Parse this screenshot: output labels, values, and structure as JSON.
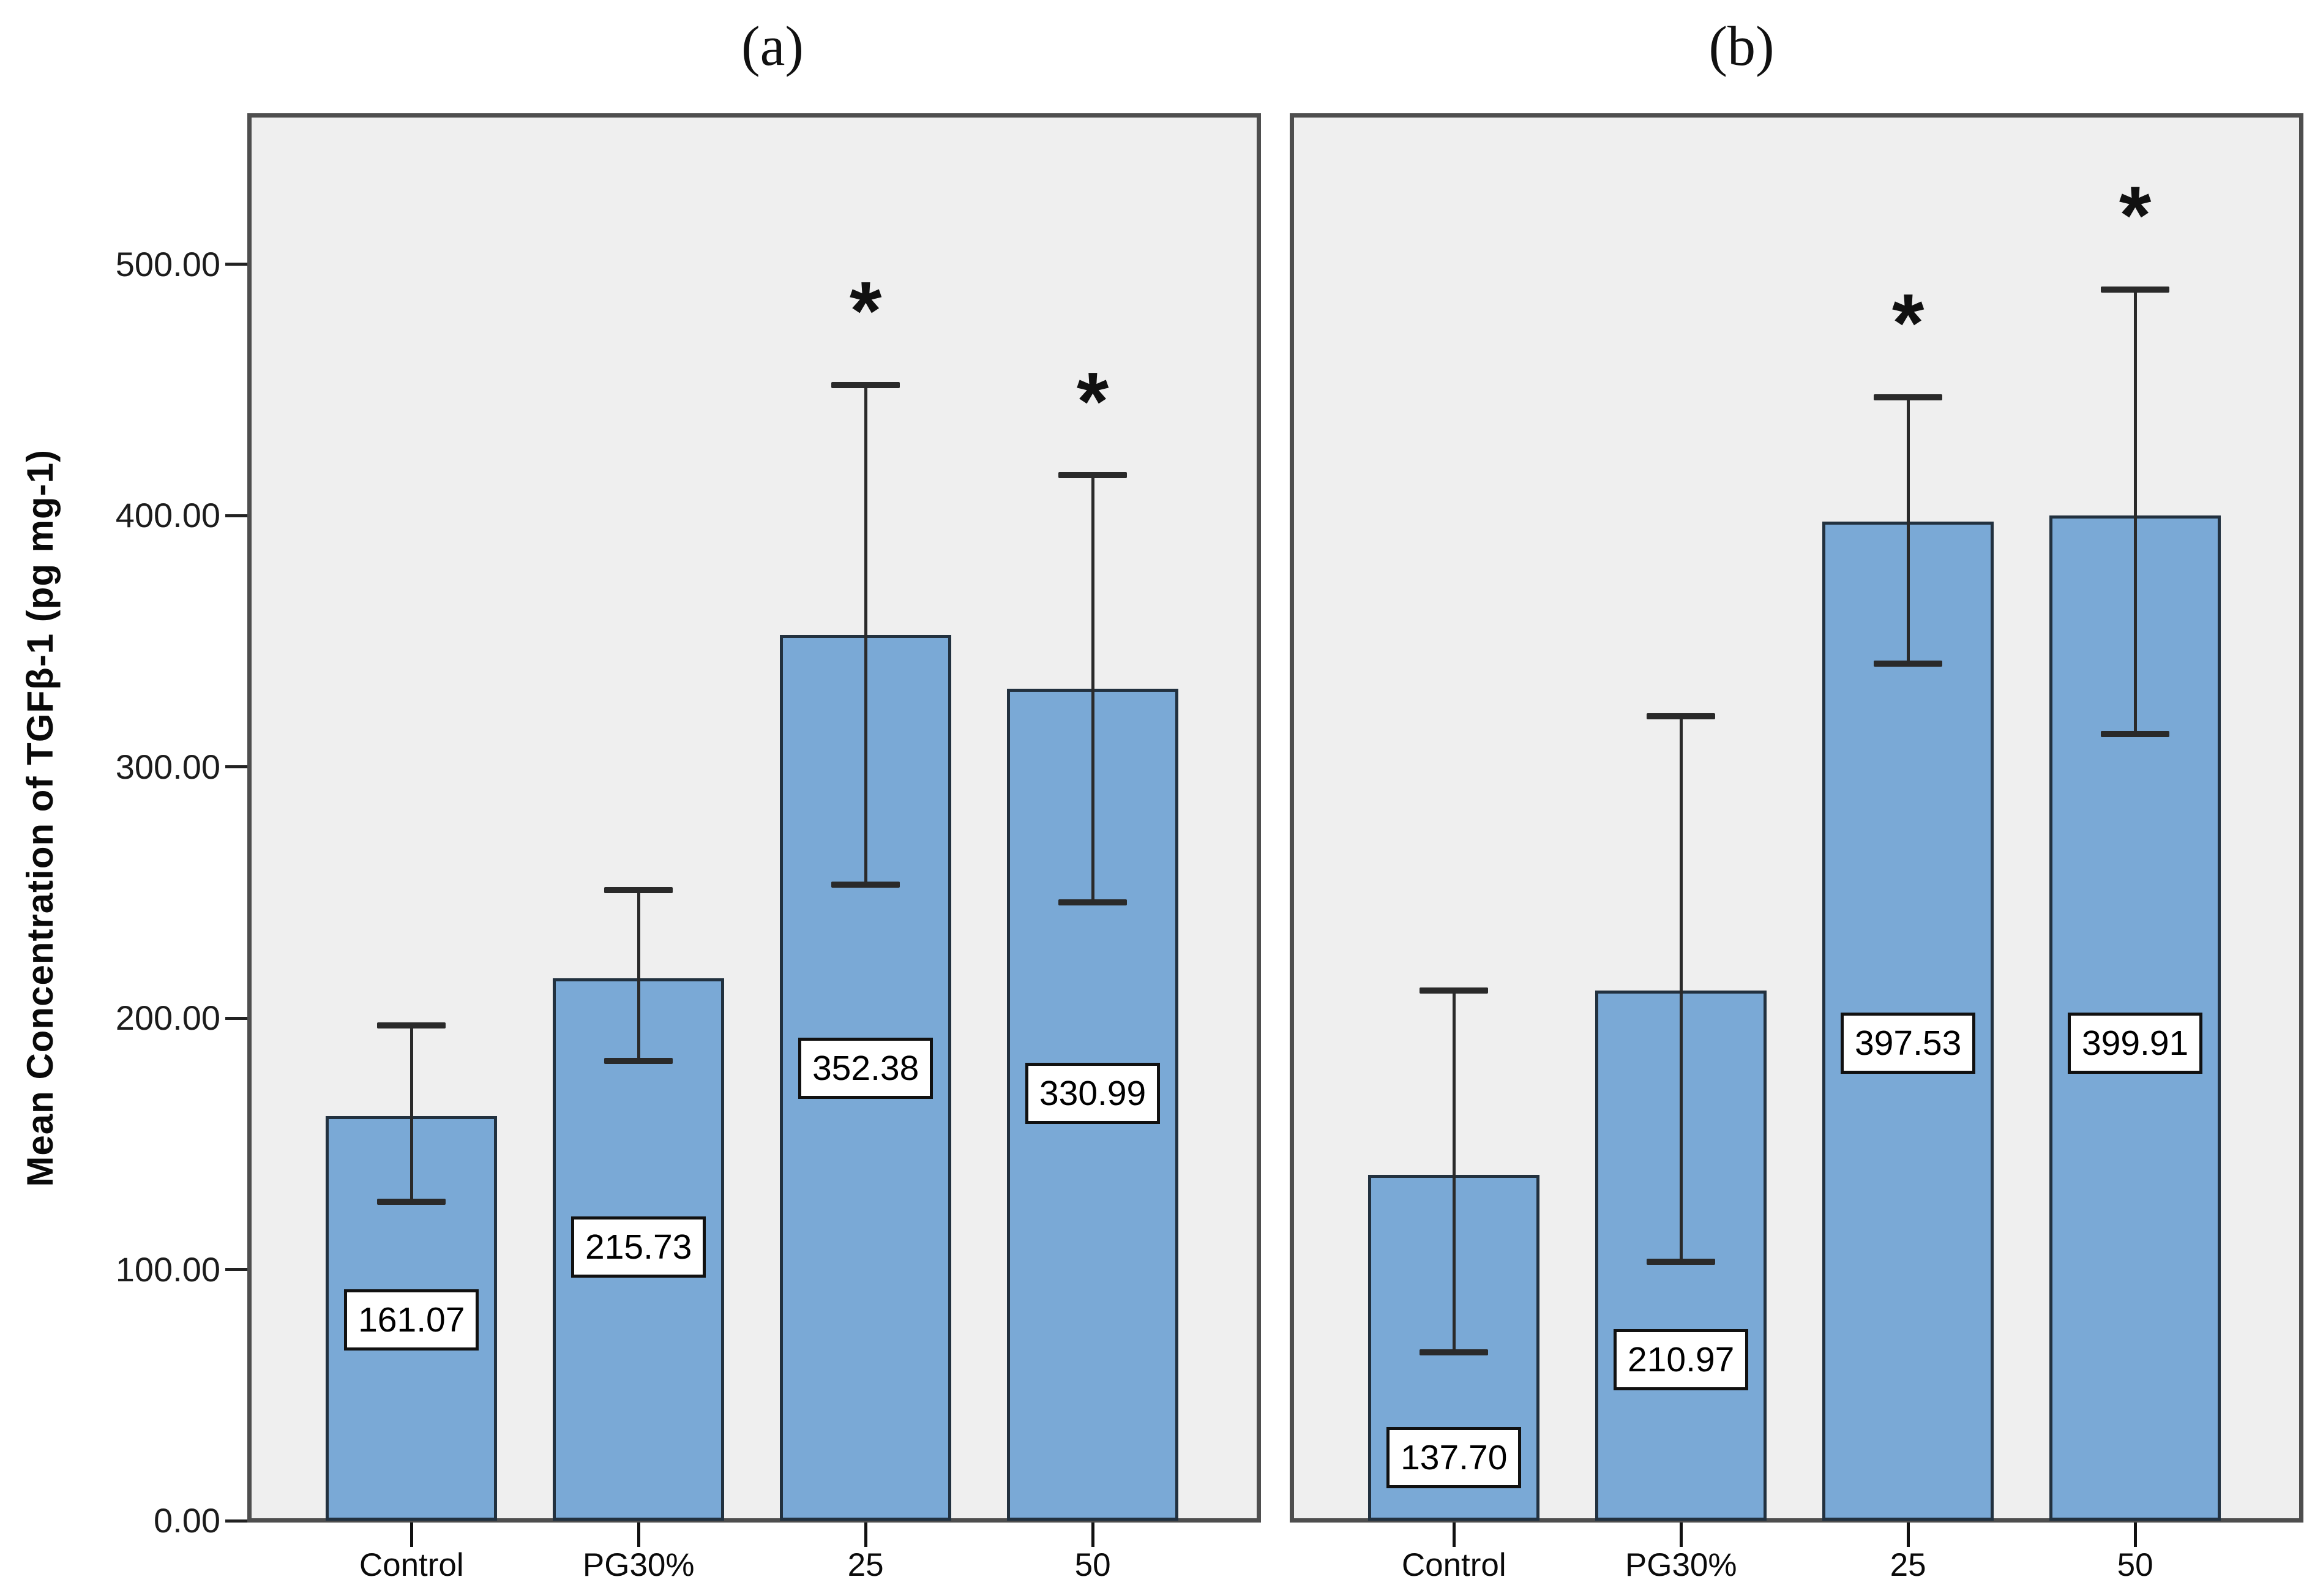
{
  "chart_data": {
    "type": "bar",
    "title": "",
    "ylabel": "Mean Concentration of  TGFβ-1 (pg mg-1)",
    "xlabel": "",
    "ylim": [
      0,
      560
    ],
    "grid": false,
    "legend": null,
    "star_char": "*",
    "categories": [
      "Control",
      "PG30%",
      "25",
      "50"
    ],
    "yticks": [
      {
        "v": 0,
        "label": "0.00"
      },
      {
        "v": 100,
        "label": "100.00"
      },
      {
        "v": 200,
        "label": "200.00"
      },
      {
        "v": 300,
        "label": "300.00"
      },
      {
        "v": 400,
        "label": "400.00"
      },
      {
        "v": 500,
        "label": "500.00"
      }
    ],
    "panels": [
      {
        "label": "(a)",
        "bars": [
          {
            "category": "Control",
            "value": 161.07,
            "label": "161.07",
            "err_hi": 197,
            "err_lo": 127,
            "star": false,
            "label_y": 80
          },
          {
            "category": "PG30%",
            "value": 215.73,
            "label": "215.73",
            "err_hi": 251,
            "err_lo": 183,
            "star": false,
            "label_y": 109
          },
          {
            "category": "25",
            "value": 352.38,
            "label": "352.38",
            "err_hi": 452,
            "err_lo": 253,
            "star": true,
            "label_y": 180
          },
          {
            "category": "50",
            "value": 330.99,
            "label": "330.99",
            "err_hi": 416,
            "err_lo": 246,
            "star": true,
            "label_y": 170
          }
        ]
      },
      {
        "label": "(b)",
        "bars": [
          {
            "category": "Control",
            "value": 137.7,
            "label": "137.70",
            "err_hi": 211,
            "err_lo": 67,
            "star": false,
            "label_y": 25
          },
          {
            "category": "PG30%",
            "value": 210.97,
            "label": "210.97",
            "err_hi": 320,
            "err_lo": 103,
            "star": false,
            "label_y": 64
          },
          {
            "category": "25",
            "value": 397.53,
            "label": "397.53",
            "err_hi": 447,
            "err_lo": 341,
            "star": true,
            "label_y": 190
          },
          {
            "category": "50",
            "value": 399.91,
            "label": "399.91",
            "err_hi": 490,
            "err_lo": 313,
            "star": true,
            "label_y": 190
          }
        ]
      }
    ],
    "colors": {
      "bar_fill": "#7AA9D6",
      "bar_border": "#22313F",
      "error_bar": "#2A2A2A",
      "panel_background": "#EFEFEF",
      "panel_border": "#4E4E4E"
    }
  }
}
